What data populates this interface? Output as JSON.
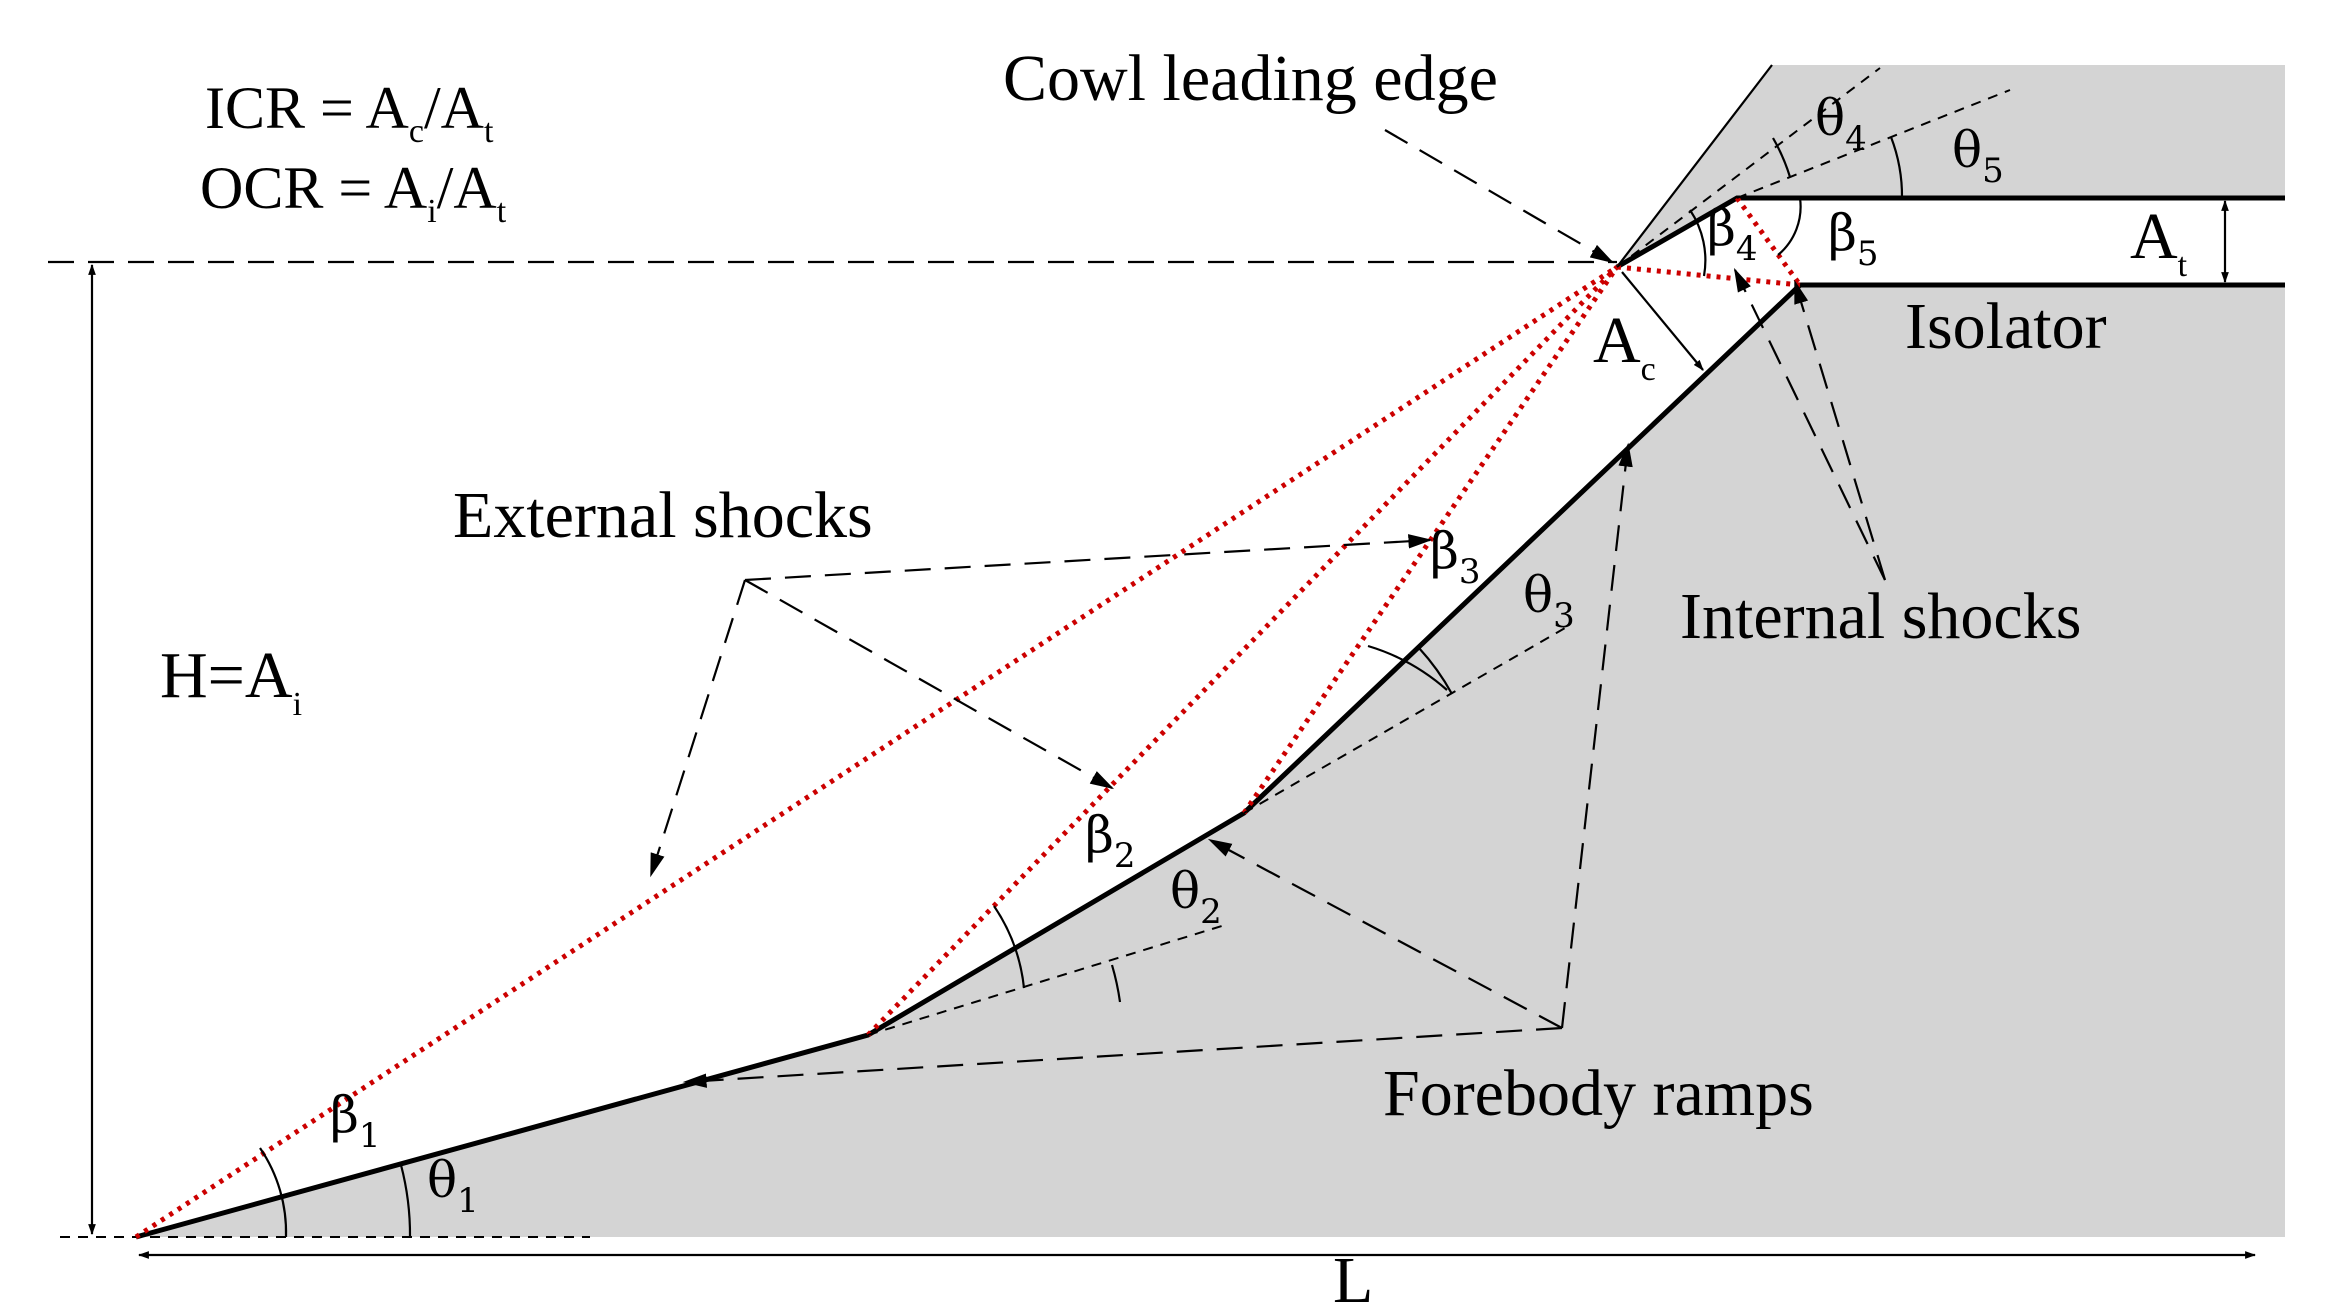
{
  "diagram": {
    "equations": {
      "icr": {
        "prefix": "ICR = A",
        "sub1": "c",
        "mid": "/A",
        "sub2": "t"
      },
      "ocr": {
        "prefix": "OCR  = A",
        "sub1": "i",
        "mid": "/A",
        "sub2": "t"
      }
    },
    "labels": {
      "cowl_leading_edge": "Cowl leading edge",
      "external_shocks": "External shocks",
      "internal_shocks": "Internal shocks",
      "isolator": "Isolator",
      "forebody_ramps": "Forebody ramps",
      "height": {
        "prefix": "H=A",
        "sub": "i"
      },
      "length": "L",
      "capture_area": {
        "letter": "A",
        "sub": "c"
      },
      "throat_area": {
        "letter": "A",
        "sub": "t"
      }
    },
    "angles": {
      "beta1": {
        "letter": "β",
        "sub": "1"
      },
      "beta2": {
        "letter": "β",
        "sub": "2"
      },
      "beta3": {
        "letter": "β",
        "sub": "3"
      },
      "beta4": {
        "letter": "β",
        "sub": "4"
      },
      "beta5": {
        "letter": "β",
        "sub": "5"
      },
      "theta1": {
        "letter": "θ",
        "sub": "1"
      },
      "theta2": {
        "letter": "θ",
        "sub": "2"
      },
      "theta3": {
        "letter": "θ",
        "sub": "3"
      },
      "theta4": {
        "letter": "θ",
        "sub": "4"
      },
      "theta5": {
        "letter": "θ",
        "sub": "5"
      }
    },
    "colors": {
      "body_fill": "#d4d4d4",
      "shock_lines": "#cc0000",
      "lines": "#000000"
    }
  }
}
